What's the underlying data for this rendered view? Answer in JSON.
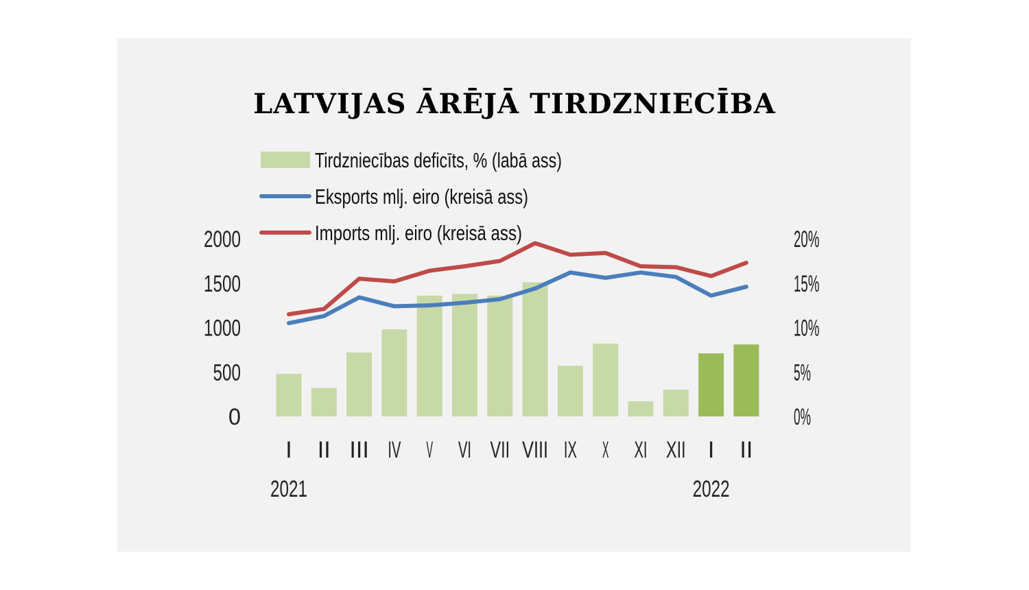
{
  "chart_data": {
    "type": "bar",
    "title": "LATVIJAS ĀRĒJĀ TIRDZNIECĪBA",
    "categories": [
      "I",
      "II",
      "III",
      "IV",
      "V",
      "VI",
      "VII",
      "VIII",
      "IX",
      "X",
      "XI",
      "XII",
      "I",
      "II"
    ],
    "year_labels": [
      {
        "label": "2021",
        "category_index": 0
      },
      {
        "label": "2022",
        "category_index": 12
      }
    ],
    "left_axis": {
      "ylim": [
        0,
        2000
      ],
      "ticks": [
        "0",
        "500",
        "1000",
        "1500",
        "2000"
      ]
    },
    "right_axis": {
      "ylim": [
        0,
        20
      ],
      "ticks": [
        "0%",
        "5%",
        "10%",
        "15%",
        "20%"
      ]
    },
    "series": [
      {
        "name": "Tirdzniecības deficīts, % (labā ass)",
        "kind": "bar",
        "axis": "right",
        "color": "#c8d9a8",
        "highlight_color": "#9bbb59",
        "highlight_from_index": 12,
        "values": [
          4.8,
          3.2,
          7.2,
          9.8,
          13.6,
          13.8,
          13.6,
          15.1,
          5.7,
          8.2,
          1.7,
          3.0,
          7.1,
          8.1
        ]
      },
      {
        "name": "Eksports mlj. eiro (kreisā ass)",
        "kind": "line",
        "axis": "left",
        "color": "#4a7ebb",
        "values": [
          1050,
          1130,
          1340,
          1240,
          1250,
          1280,
          1320,
          1440,
          1620,
          1560,
          1620,
          1570,
          1360,
          1460
        ]
      },
      {
        "name": "Imports mlj. eiro (kreisā ass)",
        "kind": "line",
        "axis": "left",
        "color": "#be4b48",
        "values": [
          1150,
          1210,
          1550,
          1520,
          1640,
          1690,
          1750,
          1950,
          1820,
          1840,
          1690,
          1680,
          1580,
          1730
        ]
      }
    ]
  }
}
